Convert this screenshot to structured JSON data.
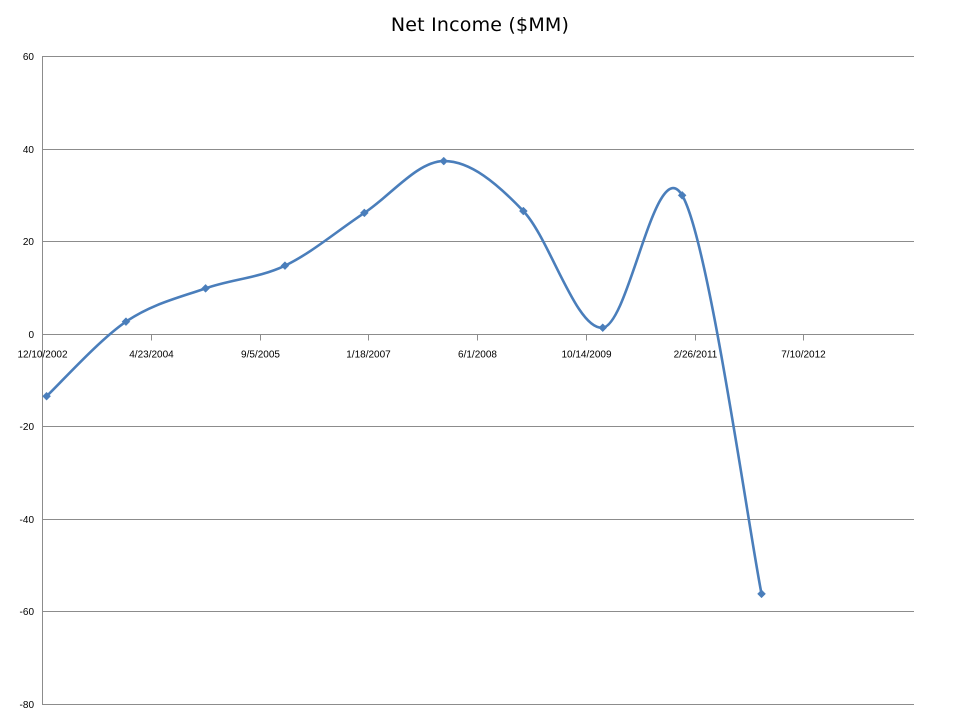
{
  "chart_data": {
    "type": "line",
    "title": "Net Income ($MM)",
    "xlabel": "",
    "ylabel": "",
    "x_type": "date",
    "xlim": [
      "2002-12-10",
      "2013-12-01"
    ],
    "ylim": [
      -80,
      60
    ],
    "y_ticks": [
      60,
      40,
      20,
      0,
      -20,
      -40,
      -60,
      -80
    ],
    "x_ticks": [
      {
        "date": "2002-12-10",
        "label": "12/10/2002"
      },
      {
        "date": "2004-04-23",
        "label": "4/23/2004"
      },
      {
        "date": "2005-09-05",
        "label": "9/5/2005"
      },
      {
        "date": "2007-01-18",
        "label": "1/18/2007"
      },
      {
        "date": "2008-06-01",
        "label": "6/1/2008"
      },
      {
        "date": "2009-10-14",
        "label": "10/14/2009"
      },
      {
        "date": "2011-02-26",
        "label": "2/26/2011"
      },
      {
        "date": "2012-07-10",
        "label": "7/10/2012"
      }
    ],
    "grid": "horizontal",
    "smooth": true,
    "marker": "diamond",
    "legend": "none",
    "series": [
      {
        "color": "#4a7ebb",
        "points": [
          {
            "x": "2002-12-31",
            "y": -13.5
          },
          {
            "x": "2003-12-31",
            "y": 2.6
          },
          {
            "x": "2004-12-31",
            "y": 9.8
          },
          {
            "x": "2005-12-31",
            "y": 14.7
          },
          {
            "x": "2006-12-31",
            "y": 26.1
          },
          {
            "x": "2007-12-31",
            "y": 37.3
          },
          {
            "x": "2008-12-31",
            "y": 26.5
          },
          {
            "x": "2009-12-31",
            "y": 1.3
          },
          {
            "x": "2010-12-31",
            "y": 29.9
          },
          {
            "x": "2011-12-31",
            "y": -56.2
          }
        ]
      }
    ]
  }
}
